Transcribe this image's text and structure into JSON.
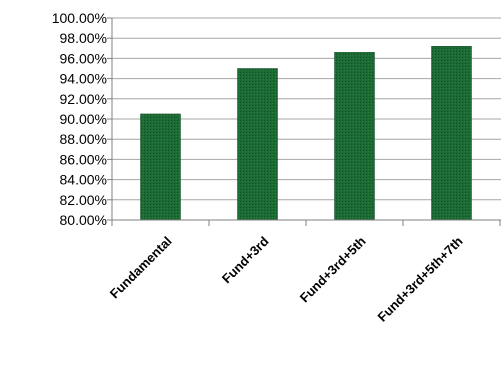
{
  "chart_data": {
    "type": "bar",
    "title": "",
    "xlabel": "",
    "ylabel": "",
    "categories": [
      "Fundamental",
      "Fund+3rd",
      "Fund+3rd+5th",
      "Fund+3rd+5th+7th"
    ],
    "series": [
      {
        "values": [
          90.5,
          95.0,
          96.6,
          97.2
        ],
        "color": "#1d6b34"
      }
    ],
    "ylim": [
      80,
      100
    ],
    "yticks": [
      80,
      82,
      84,
      86,
      88,
      90,
      92,
      94,
      96,
      98,
      100
    ],
    "ytick_labels": [
      "80.00%",
      "82.00%",
      "84.00%",
      "86.00%",
      "88.00%",
      "90.00%",
      "92.00%",
      "94.00%",
      "96.00%",
      "98.00%",
      "100.00%"
    ],
    "grid": true,
    "legend": "none"
  }
}
